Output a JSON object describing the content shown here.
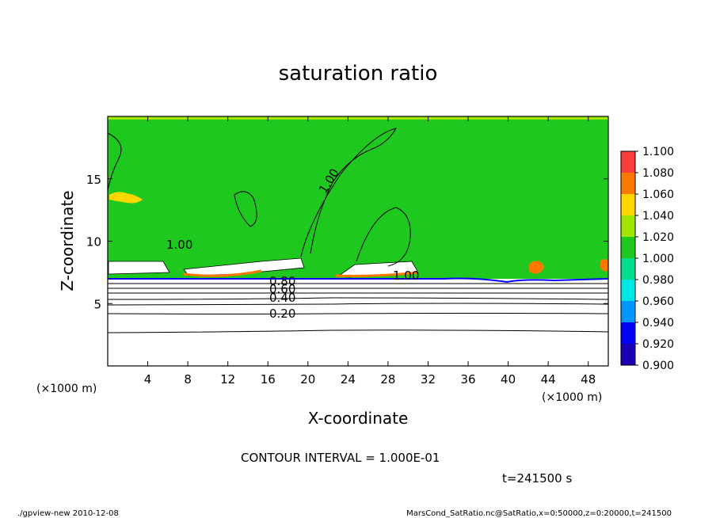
{
  "chart_data": {
    "type": "heatmap",
    "title": "saturation ratio",
    "xlabel": "X-coordinate",
    "ylabel": "Z-coordinate",
    "x_unit": "(×1000 m)",
    "y_unit": "(×1000 m)",
    "xlim": [
      0,
      50
    ],
    "ylim": [
      0,
      20
    ],
    "x_ticks": [
      4,
      8,
      12,
      16,
      20,
      24,
      28,
      32,
      36,
      40,
      44,
      48
    ],
    "y_ticks": [
      5,
      10,
      15
    ],
    "colorbar": {
      "levels": [
        "0.900",
        "0.920",
        "0.940",
        "0.960",
        "0.980",
        "1.000",
        "1.020",
        "1.040",
        "1.060",
        "1.080",
        "1.100"
      ],
      "colors": [
        "#7a00c8",
        "#1a00b4",
        "#0000ff",
        "#0096ff",
        "#00e6e6",
        "#00dc8c",
        "#1ec81e",
        "#a0e600",
        "#ffd700",
        "#ff7800",
        "#ff3c3c",
        "#ff9696"
      ]
    },
    "contour_labels": [
      "1.00",
      "1.00",
      "1.00",
      "0.80",
      "0.60",
      "0.40",
      "0.20"
    ],
    "contour_interval": "CONTOUR INTERVAL = 1.000E-01",
    "time": "t=241500 s",
    "footer_left": "./gpview-new   2010-12-08",
    "footer_right": "MarsCond_SatRatio.nc@SatRatio,x=0:50000,z=0:20000,t=241500"
  }
}
